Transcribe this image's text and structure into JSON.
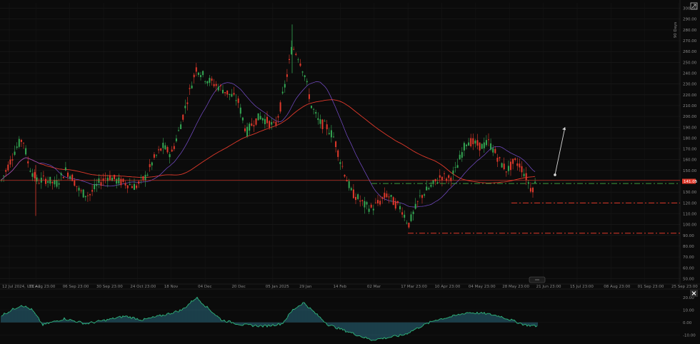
{
  "chart_data": {
    "type": "candlestick",
    "price_axis_ticks": [
      50,
      60,
      70,
      80,
      90,
      100,
      110,
      120,
      130,
      140,
      150,
      160,
      170,
      180,
      190,
      200,
      210,
      220,
      230,
      240,
      250,
      260,
      270,
      280,
      290,
      300
    ],
    "ylim": [
      45,
      305
    ],
    "price_axis_decimals": "00",
    "current_price_label": "141.05",
    "current_price": 141.05,
    "time_axis_labels": [
      "12 Jul 2024, UTC+2",
      "13 Aug 23:00",
      "06 Sep 23:00",
      "30 Sep 23:00",
      "24 Oct 23:00",
      "18 Nov",
      "04 Dec",
      "20 Dec",
      "05 Jan 2025",
      "29 Jan",
      "14 Feb",
      "02 Mar",
      "17 Mar 23:00",
      "10 Apr 23:00",
      "04 May 23:00",
      "28 May 23:00",
      "21 Jun 23:00",
      "15 Jul 23:00",
      "08 Aug 23:00",
      "01 Sep 23:00",
      "25 Sep 23:00"
    ],
    "side_label": "90 Days",
    "horizontal_levels": [
      {
        "price": 138,
        "color": "#3e9a3e",
        "style": "dash-dot"
      },
      {
        "price": 120,
        "color": "#e0392b",
        "style": "dash-dot"
      },
      {
        "price": 92,
        "color": "#e0392b",
        "style": "dash-dot"
      }
    ],
    "moving_averages": [
      {
        "color": "#e0392b"
      },
      {
        "color": "#7a4fd0"
      }
    ],
    "up_color": "#34a853",
    "down_color": "#e0392b",
    "forecast_arrow": {
      "from": 146,
      "to": 190,
      "color": "#d8d8d8"
    },
    "oscillator": {
      "ticks": [
        "20.00",
        "10.00",
        "0.00",
        "-10.00"
      ],
      "line_color": "#2fb37a",
      "histogram_color": "#3aa0c0"
    }
  },
  "icons": {
    "expand": "expand-icon",
    "close": "close-icon",
    "scroll": "scroll-indicator-icon"
  }
}
